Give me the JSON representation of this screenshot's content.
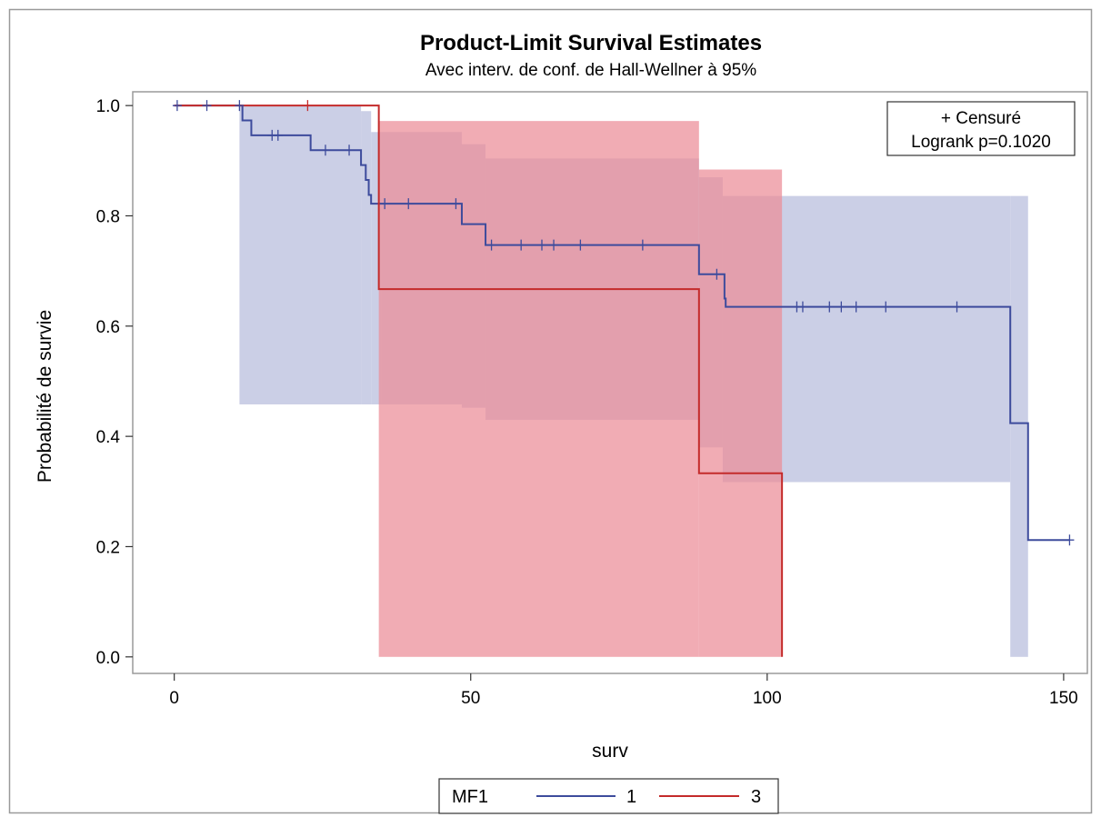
{
  "chart_data": {
    "type": "line",
    "title": "Product-Limit Survival Estimates",
    "subtitle": "Avec interv. de conf. de Hall-Wellner à 95%",
    "xlabel": "surv",
    "ylabel": "Probabilité de survie",
    "xlim": [
      -7,
      154
    ],
    "ylim": [
      -0.03,
      1.025
    ],
    "x_ticks": [
      "0",
      "50",
      "100",
      "150"
    ],
    "y_ticks": [
      "0.0",
      "0.2",
      "0.4",
      "0.6",
      "0.8",
      "1.0"
    ],
    "x_tick_values": [
      0,
      50,
      100,
      150
    ],
    "y_tick_values": [
      0,
      0.2,
      0.4,
      0.6,
      0.8,
      1.0
    ],
    "grid": false,
    "inset": {
      "censor_label": "+ Censuré",
      "logrank": "Logrank p=0.1020"
    },
    "legend": {
      "title": "MF1",
      "position": "bottom",
      "entries": [
        "1",
        "3"
      ]
    },
    "series": [
      {
        "name": "1",
        "color": "#3d4b9c",
        "band_color": "#b7bddc",
        "steps": [
          [
            0,
            1.0
          ],
          [
            11,
            1.0
          ],
          [
            11.5,
            0.973
          ],
          [
            13,
            0.946
          ],
          [
            23,
            0.919
          ],
          [
            31.5,
            0.892
          ],
          [
            32.3,
            0.865
          ],
          [
            32.8,
            0.838
          ],
          [
            33.2,
            0.822
          ],
          [
            48,
            0.822
          ],
          [
            48.5,
            0.785
          ],
          [
            52.5,
            0.747
          ],
          [
            88.5,
            0.747
          ],
          [
            88.5,
            0.694
          ],
          [
            92.5,
            0.694
          ],
          [
            92.8,
            0.65
          ],
          [
            93,
            0.635
          ],
          [
            141,
            0.635
          ],
          [
            141,
            0.424
          ],
          [
            144,
            0.424
          ],
          [
            144,
            0.212
          ],
          [
            151,
            0.212
          ]
        ],
        "censored": [
          [
            0.5,
            1.0
          ],
          [
            5.5,
            1.0
          ],
          [
            11,
            1.0
          ],
          [
            16.5,
            0.946
          ],
          [
            17.5,
            0.946
          ],
          [
            25.5,
            0.919
          ],
          [
            29.5,
            0.919
          ],
          [
            35.5,
            0.822
          ],
          [
            39.5,
            0.822
          ],
          [
            47.5,
            0.822
          ],
          [
            53.5,
            0.747
          ],
          [
            58.5,
            0.747
          ],
          [
            62,
            0.747
          ],
          [
            64,
            0.747
          ],
          [
            68.5,
            0.747
          ],
          [
            79,
            0.747
          ],
          [
            91.5,
            0.694
          ],
          [
            105,
            0.635
          ],
          [
            106,
            0.635
          ],
          [
            110.5,
            0.635
          ],
          [
            112.5,
            0.635
          ],
          [
            115,
            0.635
          ],
          [
            120,
            0.635
          ],
          [
            132,
            0.635
          ],
          [
            151,
            0.212
          ]
        ],
        "band": [
          {
            "x0": 11,
            "x1": 31.5,
            "lower": 0.458,
            "upper": 1.0
          },
          {
            "x0": 31.5,
            "x1": 33.2,
            "lower": 0.458,
            "upper": 0.99
          },
          {
            "x0": 33.2,
            "x1": 35,
            "lower": 0.458,
            "upper": 0.952
          },
          {
            "x0": 35,
            "x1": 48.5,
            "lower": 0.458,
            "upper": 0.952
          },
          {
            "x0": 48.5,
            "x1": 52.5,
            "lower": 0.452,
            "upper": 0.93
          },
          {
            "x0": 52.5,
            "x1": 88.5,
            "lower": 0.43,
            "upper": 0.904
          },
          {
            "x0": 88.5,
            "x1": 92.5,
            "lower": 0.38,
            "upper": 0.87
          },
          {
            "x0": 92.5,
            "x1": 141,
            "lower": 0.317,
            "upper": 0.836
          },
          {
            "x0": 141,
            "x1": 144,
            "lower": 0.0,
            "upper": 0.836
          }
        ]
      },
      {
        "name": "3",
        "color": "#c42b2b",
        "band_color": "#ec8c97",
        "steps": [
          [
            0,
            1.0
          ],
          [
            34.5,
            1.0
          ],
          [
            34.5,
            0.667
          ],
          [
            88.5,
            0.667
          ],
          [
            88.5,
            0.333
          ],
          [
            102.5,
            0.333
          ],
          [
            102.5,
            0.0
          ]
        ],
        "censored": [
          [
            22.5,
            1.0
          ]
        ],
        "band": [
          {
            "x0": 34.5,
            "x1": 88.5,
            "lower": 0.0,
            "upper": 0.972
          },
          {
            "x0": 88.5,
            "x1": 102.5,
            "lower": 0.0,
            "upper": 0.884
          }
        ]
      }
    ]
  }
}
